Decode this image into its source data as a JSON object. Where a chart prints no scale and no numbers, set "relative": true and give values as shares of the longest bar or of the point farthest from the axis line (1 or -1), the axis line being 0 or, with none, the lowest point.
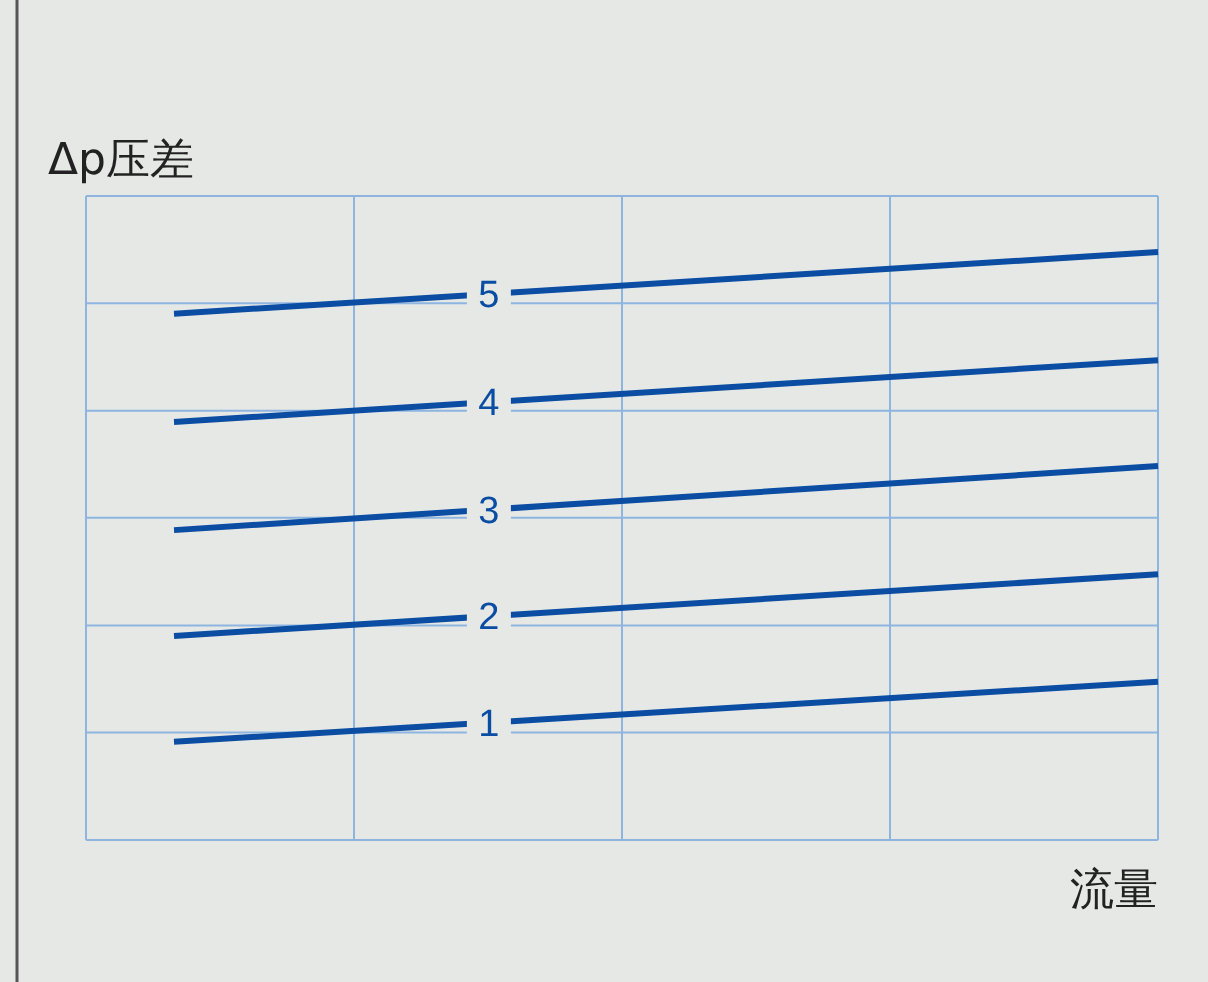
{
  "chart_data": {
    "type": "line",
    "relative": true,
    "ylabel": "Δp压差",
    "xlabel": "流量",
    "categories": [
      null,
      null
    ],
    "grid": "x",
    "ref_lines": [
      {
        "axis": "y",
        "value": 0.183,
        "color": "#8db5e0"
      },
      {
        "axis": "y",
        "value": 0.365,
        "color": "#8db5e0"
      },
      {
        "axis": "y",
        "value": 0.548,
        "color": "#8db5e0"
      },
      {
        "axis": "y",
        "value": 0.73,
        "color": "#8db5e0"
      },
      {
        "axis": "y",
        "value": 0.913,
        "color": "#8db5e0"
      }
    ],
    "legend": false,
    "series": [
      {
        "name": "1",
        "color": "#0a4da2",
        "values": [
          0.167,
          0.269
        ]
      },
      {
        "name": "2",
        "color": "#0a4da2",
        "values": [
          0.347,
          0.452
        ]
      },
      {
        "name": "3",
        "color": "#0a4da2",
        "values": [
          0.527,
          0.636
        ]
      },
      {
        "name": "4",
        "color": "#0a4da2",
        "values": [
          0.711,
          0.816
        ]
      },
      {
        "name": "5",
        "color": "#0a4da2",
        "values": [
          0.895,
          1
        ]
      }
    ]
  }
}
